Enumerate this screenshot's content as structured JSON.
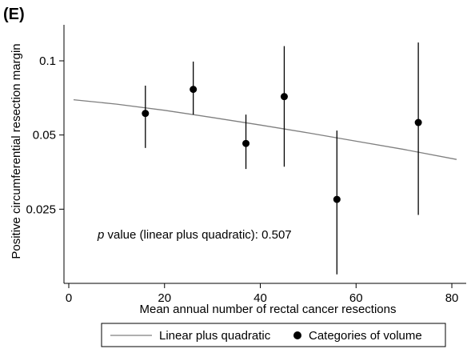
{
  "panel_label": "(E)",
  "chart_data": {
    "type": "scatter",
    "xlabel": "Mean annual number of rectal cancer resections",
    "ylabel": "Positive circumferential resection margin",
    "xlim": [
      -1,
      83
    ],
    "ylim": [
      0.0125,
      0.14
    ],
    "y_scale": "log",
    "x_ticks": [
      0,
      20,
      40,
      60,
      80
    ],
    "x_tick_labels": [
      "0",
      "20",
      "40",
      "60",
      "80"
    ],
    "y_ticks": [
      0.025,
      0.05,
      0.1
    ],
    "y_tick_labels": [
      "0.025",
      "0.05",
      "0.1"
    ],
    "grid": false,
    "legend_position": "bottom",
    "annotation": {
      "p_label": "p",
      "text": " value (linear plus quadratic): 0.507"
    },
    "series": [
      {
        "name": "Linear plus quadratic",
        "kind": "line",
        "color": "#7f7f7f",
        "x": [
          1,
          10,
          20,
          30,
          40,
          50,
          60,
          70,
          81
        ],
        "y": [
          0.0695,
          0.0667,
          0.063,
          0.0589,
          0.0549,
          0.051,
          0.0472,
          0.0437,
          0.0398
        ]
      },
      {
        "name": "Categories of volume",
        "kind": "points_with_ci",
        "color": "#000000",
        "x": [
          16,
          26,
          37,
          45,
          56,
          73
        ],
        "y": [
          0.0612,
          0.0766,
          0.0462,
          0.0716,
          0.0274,
          0.0562
        ],
        "ci_low": [
          0.0443,
          0.0605,
          0.0364,
          0.0372,
          0.0136,
          0.0237
        ],
        "ci_high": [
          0.0793,
          0.0993,
          0.0605,
          0.1147,
          0.0521,
          0.1187
        ]
      }
    ]
  }
}
